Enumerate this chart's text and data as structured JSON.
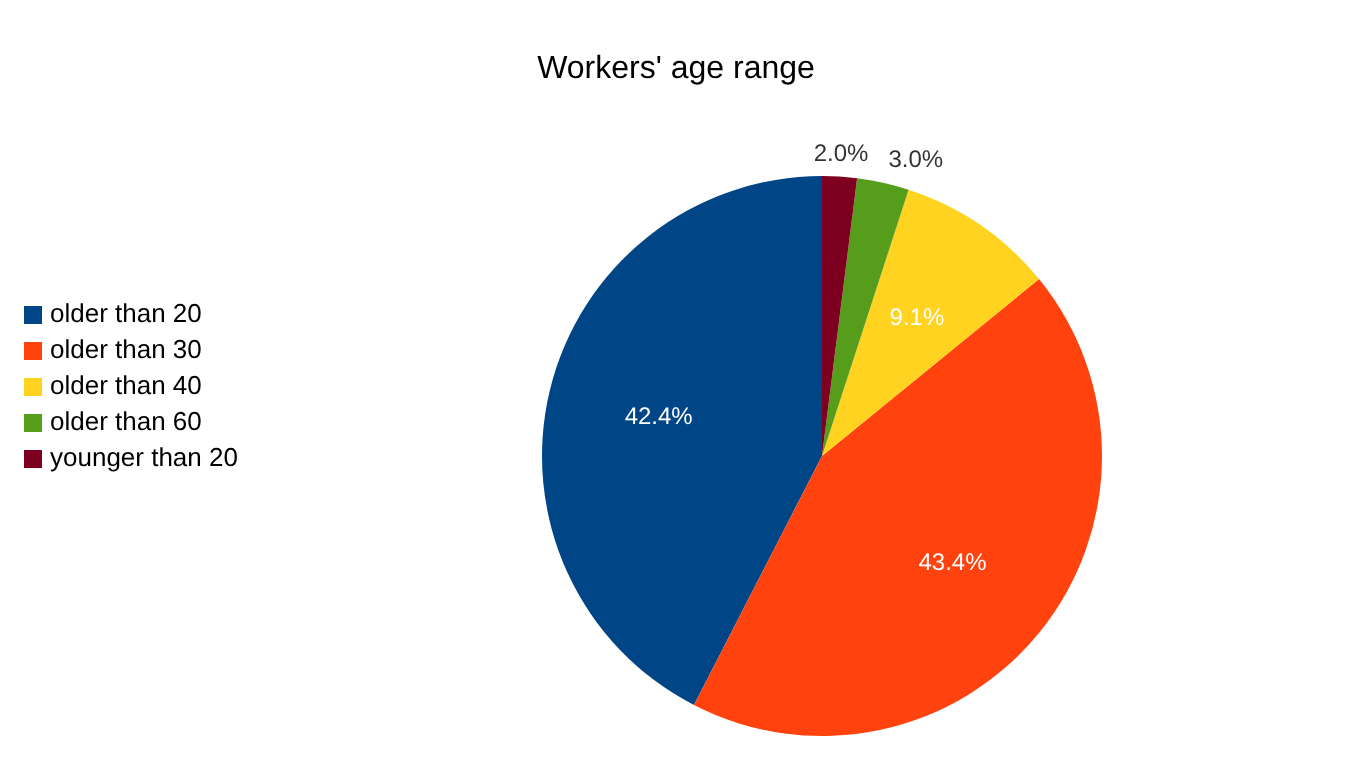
{
  "chart_data": {
    "type": "pie",
    "title": "Workers' age range",
    "categories": [
      "older than 20",
      "older than 30",
      "older than 40",
      "older than 60",
      "younger than 20"
    ],
    "values": [
      42.4,
      43.4,
      9.1,
      3.0,
      2.0
    ],
    "value_labels": [
      "42.4%",
      "43.4%",
      "9.1%",
      "3.0%",
      "2.0%"
    ],
    "colors": [
      "#004586",
      "#ff420e",
      "#ffd320",
      "#579d1c",
      "#7e0021"
    ],
    "legend": "left"
  }
}
